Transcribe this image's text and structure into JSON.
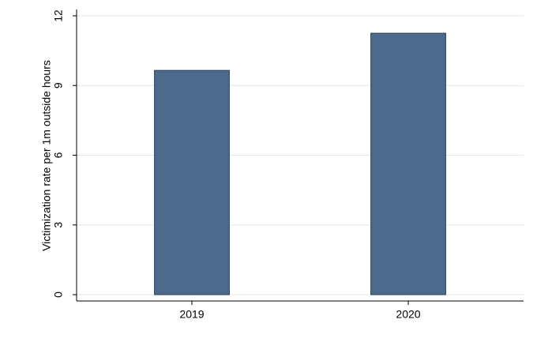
{
  "chart_data": {
    "type": "bar",
    "y_label": "Victimization rate per 1m outside hours",
    "categories": [
      "2019",
      "2020"
    ],
    "values": [
      9.65,
      11.25
    ],
    "color": "#4d6a8a",
    "ylim": [
      0,
      12
    ],
    "yticks": [
      0,
      3,
      6,
      9,
      12
    ],
    "grid": true
  }
}
